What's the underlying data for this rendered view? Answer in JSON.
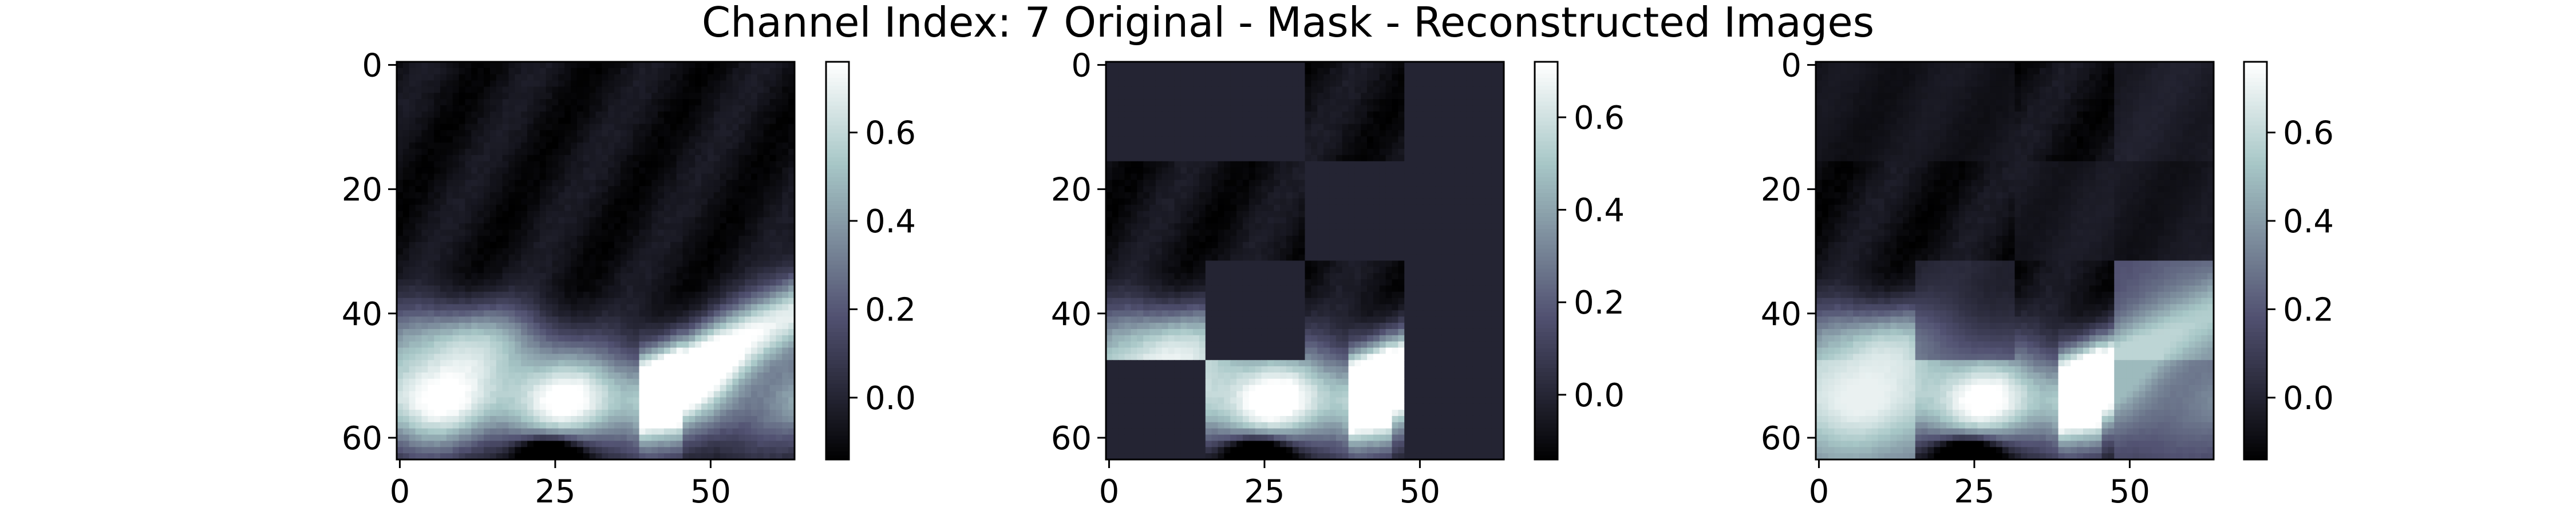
{
  "figure": {
    "title": "Channel Index: 7 Original - Mask - Reconstructed Images"
  },
  "chart_data": [
    {
      "type": "heatmap",
      "panel": "original",
      "title": "",
      "xlabel": "",
      "ylabel": "",
      "xlim": [
        -0.5,
        63.5
      ],
      "ylim": [
        63.5,
        -0.5
      ],
      "xticks": [
        0,
        25,
        50
      ],
      "yticks": [
        0,
        20,
        40,
        60
      ],
      "colormap": "bone",
      "colorbar": {
        "range": [
          -0.14,
          0.76
        ],
        "ticks": [
          0.0,
          0.2,
          0.4,
          0.6
        ],
        "tick_labels": [
          "0.0",
          "0.2",
          "0.4",
          "0.6"
        ]
      },
      "grid": false
    },
    {
      "type": "heatmap",
      "panel": "masked",
      "title": "",
      "xlabel": "",
      "ylabel": "",
      "xlim": [
        -0.5,
        63.5
      ],
      "ylim": [
        63.5,
        -0.5
      ],
      "xticks": [
        0,
        25,
        50
      ],
      "yticks": [
        0,
        20,
        40,
        60
      ],
      "colormap": "bone",
      "colorbar": {
        "range": [
          -0.14,
          0.72
        ],
        "ticks": [
          0.0,
          0.2,
          0.4,
          0.6
        ],
        "tick_labels": [
          "0.0",
          "0.2",
          "0.4",
          "0.6"
        ]
      },
      "patch_size": 16,
      "masked_value": 0.0,
      "masked_patches": [
        [
          0,
          0
        ],
        [
          0,
          1
        ],
        [
          0,
          3
        ],
        [
          1,
          2
        ],
        [
          1,
          3
        ],
        [
          2,
          1
        ],
        [
          2,
          3
        ],
        [
          3,
          0
        ],
        [
          3,
          3
        ]
      ],
      "grid": false
    },
    {
      "type": "heatmap",
      "panel": "reconstructed",
      "title": "",
      "xlabel": "",
      "ylabel": "",
      "xlim": [
        -0.5,
        63.5
      ],
      "ylim": [
        63.5,
        -0.5
      ],
      "xticks": [
        0,
        25,
        50
      ],
      "yticks": [
        0,
        20,
        40,
        60
      ],
      "colormap": "bone",
      "colorbar": {
        "range": [
          -0.14,
          0.76
        ],
        "ticks": [
          0.0,
          0.2,
          0.4,
          0.6
        ],
        "tick_labels": [
          "0.0",
          "0.2",
          "0.4",
          "0.6"
        ]
      },
      "grid": false
    }
  ]
}
